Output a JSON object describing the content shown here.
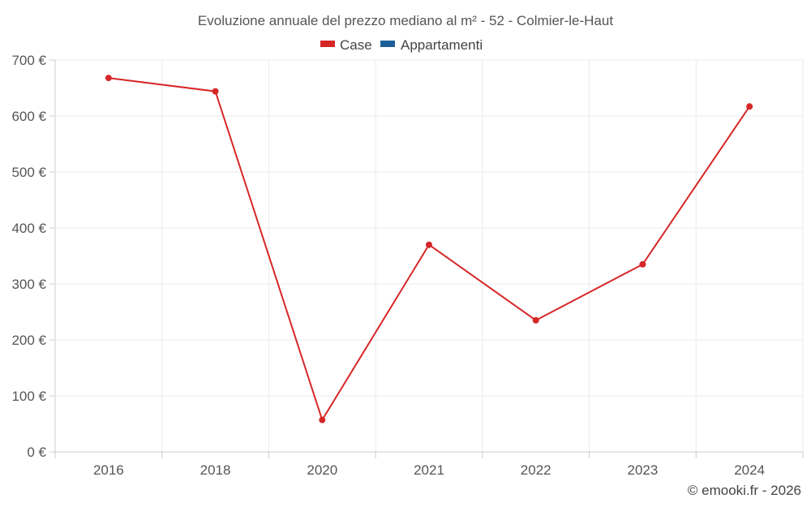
{
  "chart_data": {
    "type": "line",
    "title": "Evoluzione annuale del prezzo mediano al m² - 52 - Colmier-le-Haut",
    "categories": [
      "2016",
      "2018",
      "2020",
      "2021",
      "2022",
      "2023",
      "2024"
    ],
    "series": [
      {
        "name": "Case",
        "color": "#d62728",
        "values": [
          668,
          644,
          57,
          370,
          235,
          335,
          617
        ]
      },
      {
        "name": "Appartamenti",
        "color": "#1f5f99",
        "values": [
          null,
          null,
          null,
          null,
          null,
          null,
          null
        ]
      }
    ],
    "ylim": [
      0,
      700
    ],
    "yticks": [
      0,
      100,
      200,
      300,
      400,
      500,
      600,
      700
    ],
    "ytick_suffix": " €",
    "xlabel": "",
    "ylabel": "",
    "grid": true,
    "legend_position": "top-center"
  },
  "credit": "© emooki.fr - 2026"
}
